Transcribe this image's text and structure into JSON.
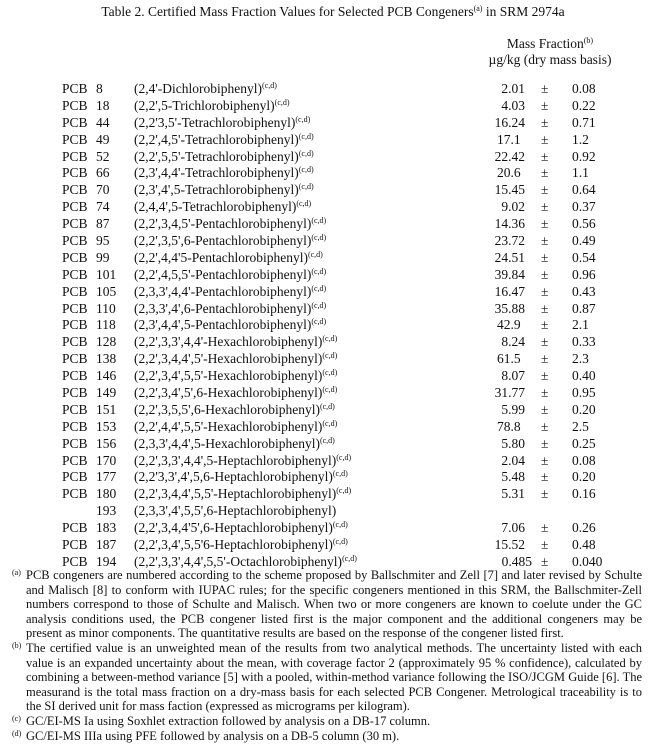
{
  "title": {
    "text": "Table 2.  Certified Mass Fraction Values for Selected PCB Congeners",
    "sup": "(a)",
    "suffix": " in SRM 2974a"
  },
  "header": {
    "line1": "Mass Fraction",
    "line1_sup": "(b)",
    "line2": "µg/kg (dry mass basis)"
  },
  "rows": [
    {
      "prefix": "PCB",
      "num": "8",
      "name": "(2,4'-Dichlorobiphenyl)",
      "sup": "(c,d)",
      "value": "2.01",
      "pm": "±",
      "unc": "0.08"
    },
    {
      "prefix": "PCB",
      "num": "18",
      "name": "(2,2',5-Trichlorobiphenyl)",
      "sup": "(c,d)",
      "value": "4.03",
      "pm": "±",
      "unc": "0.22"
    },
    {
      "prefix": "PCB",
      "num": "44",
      "name": "(2,2'3,5'-Tetrachlorobiphenyl)",
      "sup": "(c,d)",
      "value": "16.24",
      "pm": "±",
      "unc": "0.71"
    },
    {
      "prefix": "PCB",
      "num": "49",
      "name": "(2,2',4,5'-Tetrachlorobiphenyl)",
      "sup": "(c,d)",
      "value": "17.1",
      "pm": "±",
      "unc": "1.2"
    },
    {
      "prefix": "PCB",
      "num": "52",
      "name": "(2,2',5,5'-Tetrachlorobiphenyl)",
      "sup": "(c,d)",
      "value": "22.42",
      "pm": "±",
      "unc": "0.92"
    },
    {
      "prefix": "PCB",
      "num": "66",
      "name": "(2,3',4,4'-Tetrachlorobiphenyl)",
      "sup": "(c,d)",
      "value": "20.6",
      "pm": "±",
      "unc": "1.1"
    },
    {
      "prefix": "PCB",
      "num": "70",
      "name": "(2,3',4',5-Tetrachlorobiphenyl)",
      "sup": "(c,d)",
      "value": "15.45",
      "pm": "±",
      "unc": "0.64"
    },
    {
      "prefix": "PCB",
      "num": "74",
      "name": "(2,4,4',5-Tetrachlorobiphenyl)",
      "sup": "(c,d)",
      "value": "9.02",
      "pm": "±",
      "unc": "0.37"
    },
    {
      "prefix": "PCB",
      "num": "87",
      "name": "(2,2',3,4,5'-Pentachlorobiphenyl)",
      "sup": "(c,d)",
      "value": "14.36",
      "pm": "±",
      "unc": "0.56"
    },
    {
      "prefix": "PCB",
      "num": "95",
      "name": "(2,2',3,5',6-Pentachlorobiphenyl)",
      "sup": "(c,d)",
      "value": "23.72",
      "pm": "±",
      "unc": "0.49"
    },
    {
      "prefix": "PCB",
      "num": "99",
      "name": "(2,2',4,4'5-Pentachlorobiphenyl)",
      "sup": "(c,d)",
      "value": "24.51",
      "pm": "±",
      "unc": "0.54"
    },
    {
      "prefix": "PCB",
      "num": "101",
      "name": "(2,2',4,5,5'-Pentachlorobiphenyl)",
      "sup": "(c,d)",
      "value": "39.84",
      "pm": "±",
      "unc": "0.96"
    },
    {
      "prefix": "PCB",
      "num": "105",
      "name": "(2,3,3',4,4'-Pentachlorobiphenyl)",
      "sup": "(c,d)",
      "value": "16.47",
      "pm": "±",
      "unc": "0.43"
    },
    {
      "prefix": "PCB",
      "num": "110",
      "name": "(2,3,3',4',6-Pentachlorobiphenyl)",
      "sup": "(c,d)",
      "value": "35.88",
      "pm": "±",
      "unc": "0.87"
    },
    {
      "prefix": "PCB",
      "num": "118",
      "name": "(2,3',4,4',5-Pentachlorobiphenyl)",
      "sup": "(c,d)",
      "value": "42.9",
      "pm": "±",
      "unc": "2.1"
    },
    {
      "prefix": "PCB",
      "num": "128",
      "name": "(2,2',3,3',4,4'-Hexachlorobiphenyl)",
      "sup": "(c,d)",
      "value": "8.24",
      "pm": "±",
      "unc": "0.33"
    },
    {
      "prefix": "PCB",
      "num": "138",
      "name": "(2,2',3,4,4',5'-Hexachlorobiphenyl)",
      "sup": "(c,d)",
      "value": "61.5",
      "pm": "±",
      "unc": "2.3"
    },
    {
      "prefix": "PCB",
      "num": "146",
      "name": "(2,2',3,4',5,5'-Hexachlorobiphenyl)",
      "sup": "(c,d)",
      "value": "8.07",
      "pm": "±",
      "unc": "0.40"
    },
    {
      "prefix": "PCB",
      "num": "149",
      "name": "(2,2',3,4',5',6-Hexachlorobiphenyl)",
      "sup": "(c,d)",
      "value": "31.77",
      "pm": "±",
      "unc": "0.95"
    },
    {
      "prefix": "PCB",
      "num": "151",
      "name": "(2,2',3,5,5',6-Hexachlorobiphenyl)",
      "sup": "(c,d)",
      "value": "5.99",
      "pm": "±",
      "unc": "0.20"
    },
    {
      "prefix": "PCB",
      "num": "153",
      "name": "(2,2',4,4',5,5'-Hexachlorobiphenyl)",
      "sup": "(c,d)",
      "value": "78.8",
      "pm": "±",
      "unc": "2.5"
    },
    {
      "prefix": "PCB",
      "num": "156",
      "name": "(2,3,3',4,4',5-Hexachlorobiphenyl)",
      "sup": "(c,d)",
      "value": "5.80",
      "pm": "±",
      "unc": "0.25"
    },
    {
      "prefix": "PCB",
      "num": "170",
      "name": "(2,2',3,3',4,4',5-Heptachlorobiphenyl)",
      "sup": "(c,d)",
      "value": "2.04",
      "pm": "±",
      "unc": "0.08"
    },
    {
      "prefix": "PCB",
      "num": "177",
      "name": "(2,2'3,3',4',5,6-Heptachlorobiphenyl)",
      "sup": "(c,d)",
      "value": "5.48",
      "pm": "±",
      "unc": "0.20"
    },
    {
      "prefix": "PCB",
      "num": "180",
      "name": "(2,2',3,4,4',5,5'-Heptachlorobiphenyl)",
      "sup": "(c,d)",
      "value": "5.31",
      "pm": "±",
      "unc": "0.16"
    },
    {
      "prefix": "",
      "num": "193",
      "name": "(2,3,3',4',5,5',6-Heptachlorobiphenyl)",
      "sup": "",
      "value": "",
      "pm": "",
      "unc": ""
    },
    {
      "prefix": "PCB",
      "num": "183",
      "name": "(2,2',3,4,4'5',6-Heptachlorobiphenyl)",
      "sup": "(c,d)",
      "value": "7.06",
      "pm": "±",
      "unc": "0.26"
    },
    {
      "prefix": "PCB",
      "num": "187",
      "name": "(2,2',3,4',5,5'6-Heptachlorobiphenyl)",
      "sup": "(c,d)",
      "value": "15.52",
      "pm": "±",
      "unc": "0.48"
    },
    {
      "prefix": "PCB",
      "num": "194",
      "name": "(2,2',3,3',4,4',5,5'-Octachlorobiphenyl)",
      "sup": "(c,d)",
      "value": "0.485",
      "pm": "±",
      "unc": "0.040"
    }
  ],
  "footnotes": [
    {
      "mark": "(a)",
      "text": "PCB congeners are numbered according to the scheme proposed by Ballschmiter and Zell [7] and later revised by Schulte and Malisch [8] to conform with IUPAC rules; for the specific congeners mentioned in this SRM, the Ballschmiter-Zell numbers correspond to those of Schulte and Malisch.  When two or more congeners are known to coelute under the GC analysis conditions used, the PCB congener listed first is the major component and the additional congeners may be present as minor components.  The quantitative results are based on the response of the congener listed first."
    },
    {
      "mark": "(b)",
      "text": "The certified value is an unweighted mean of the results from two analytical methods.  The uncertainty listed with each value is an expanded uncertainty about the mean, with coverage factor 2 (approximately 95 % confidence), calculated by combining a between-method variance [5] with a pooled, within-method variance following the ISO/JCGM Guide [6].  The measurand is the total mass fraction on a dry-mass basis for each selected PCB Congener.  Metrological traceability is to the SI derived unit for mass faction (expressed as micrograms per kilogram)."
    },
    {
      "mark": "(c)",
      "text": "GC/EI-MS Ia using Soxhlet extraction followed by analysis on a DB-17 column."
    },
    {
      "mark": "(d)",
      "text": "GC/EI-MS IIIa using PFE followed by analysis on a DB-5 column (30 m)."
    }
  ]
}
